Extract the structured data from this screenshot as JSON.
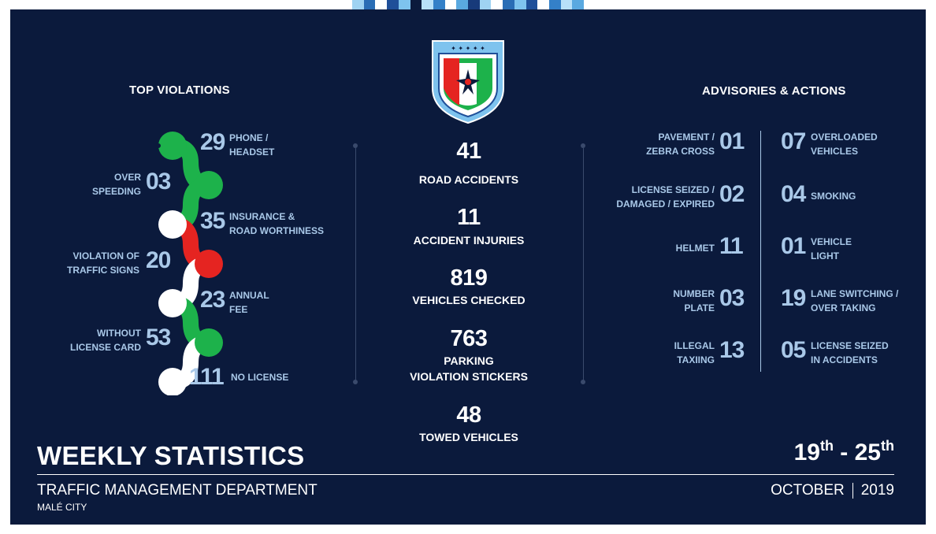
{
  "header_stripe_colors": [
    "#9fd3f2",
    "#2a6db5",
    "#ffffff",
    "#1f4f99",
    "#7ec3ee",
    "#0b1a3c",
    "#b8e0f8",
    "#3480c8",
    "#ffffff",
    "#5aa9e0",
    "#173a7a",
    "#9fd3f2",
    "#ffffff",
    "#2a6db5",
    "#7ec3ee",
    "#1f4f99",
    "#ffffff",
    "#3480c8",
    "#b8e0f8",
    "#5aa9e0"
  ],
  "colors": {
    "panel": "#0b1a3c",
    "accent_blue": "#a9c8e8",
    "green": "#1db24b",
    "red": "#e52421",
    "white": "#ffffff"
  },
  "emblem": {
    "icon": "police-emblem-shield"
  },
  "top_violations": {
    "heading": "TOP VIOLATIONS",
    "items": [
      {
        "value": "29",
        "label_1": "PHONE /",
        "label_2": "HEADSET",
        "side": "right"
      },
      {
        "value": "03",
        "label_1": "OVER",
        "label_2": "SPEEDING",
        "side": "left"
      },
      {
        "value": "35",
        "label_1": "INSURANCE &",
        "label_2": "ROAD WORTHINESS",
        "side": "right"
      },
      {
        "value": "20",
        "label_1": "VIOLATION OF",
        "label_2": "TRAFFIC SIGNS",
        "side": "left"
      },
      {
        "value": "23",
        "label_1": "ANNUAL",
        "label_2": "FEE",
        "side": "right"
      },
      {
        "value": "53",
        "label_1": "WITHOUT",
        "label_2": "LICENSE CARD",
        "side": "left"
      },
      {
        "value": "111",
        "label_1": "NO LICENSE",
        "label_2": "",
        "side": "right"
      }
    ]
  },
  "center_stats": [
    {
      "value": "41",
      "label_1": "ROAD ACCIDENTS",
      "label_2": ""
    },
    {
      "value": "11",
      "label_1": "ACCIDENT INJURIES",
      "label_2": ""
    },
    {
      "value": "819",
      "label_1": "VEHICLES CHECKED",
      "label_2": ""
    },
    {
      "value": "763",
      "label_1": "PARKING",
      "label_2": "VIOLATION STICKERS"
    },
    {
      "value": "48",
      "label_1": "TOWED VEHICLES",
      "label_2": ""
    }
  ],
  "advisories": {
    "heading": "ADVISORIES & ACTIONS",
    "left": [
      {
        "value": "01",
        "label_1": "PAVEMENT /",
        "label_2": "ZEBRA CROSS"
      },
      {
        "value": "02",
        "label_1": "LICENSE SEIZED /",
        "label_2": "DAMAGED / EXPIRED"
      },
      {
        "value": "11",
        "label_1": "HELMET",
        "label_2": ""
      },
      {
        "value": "03",
        "label_1": "NUMBER",
        "label_2": "PLATE"
      },
      {
        "value": "13",
        "label_1": "ILLEGAL",
        "label_2": "TAXIING"
      }
    ],
    "right": [
      {
        "value": "07",
        "label_1": "OVERLOADED",
        "label_2": "VEHICLES"
      },
      {
        "value": "04",
        "label_1": "SMOKING",
        "label_2": ""
      },
      {
        "value": "01",
        "label_1": "VEHICLE",
        "label_2": "LIGHT"
      },
      {
        "value": "19",
        "label_1": "LANE SWITCHING /",
        "label_2": "OVER TAKING"
      },
      {
        "value": "05",
        "label_1": "LICENSE SEIZED",
        "label_2": "IN ACCIDENTS"
      }
    ]
  },
  "footer": {
    "title": "WEEKLY STATISTICS",
    "department": "TRAFFIC MANAGEMENT DEPARTMENT",
    "city": "MALÉ CITY",
    "date_start": "19",
    "date_start_suffix": "th",
    "date_dash": " - ",
    "date_end": "25",
    "date_end_suffix": "th",
    "month": "OCTOBER",
    "year": "2019"
  }
}
